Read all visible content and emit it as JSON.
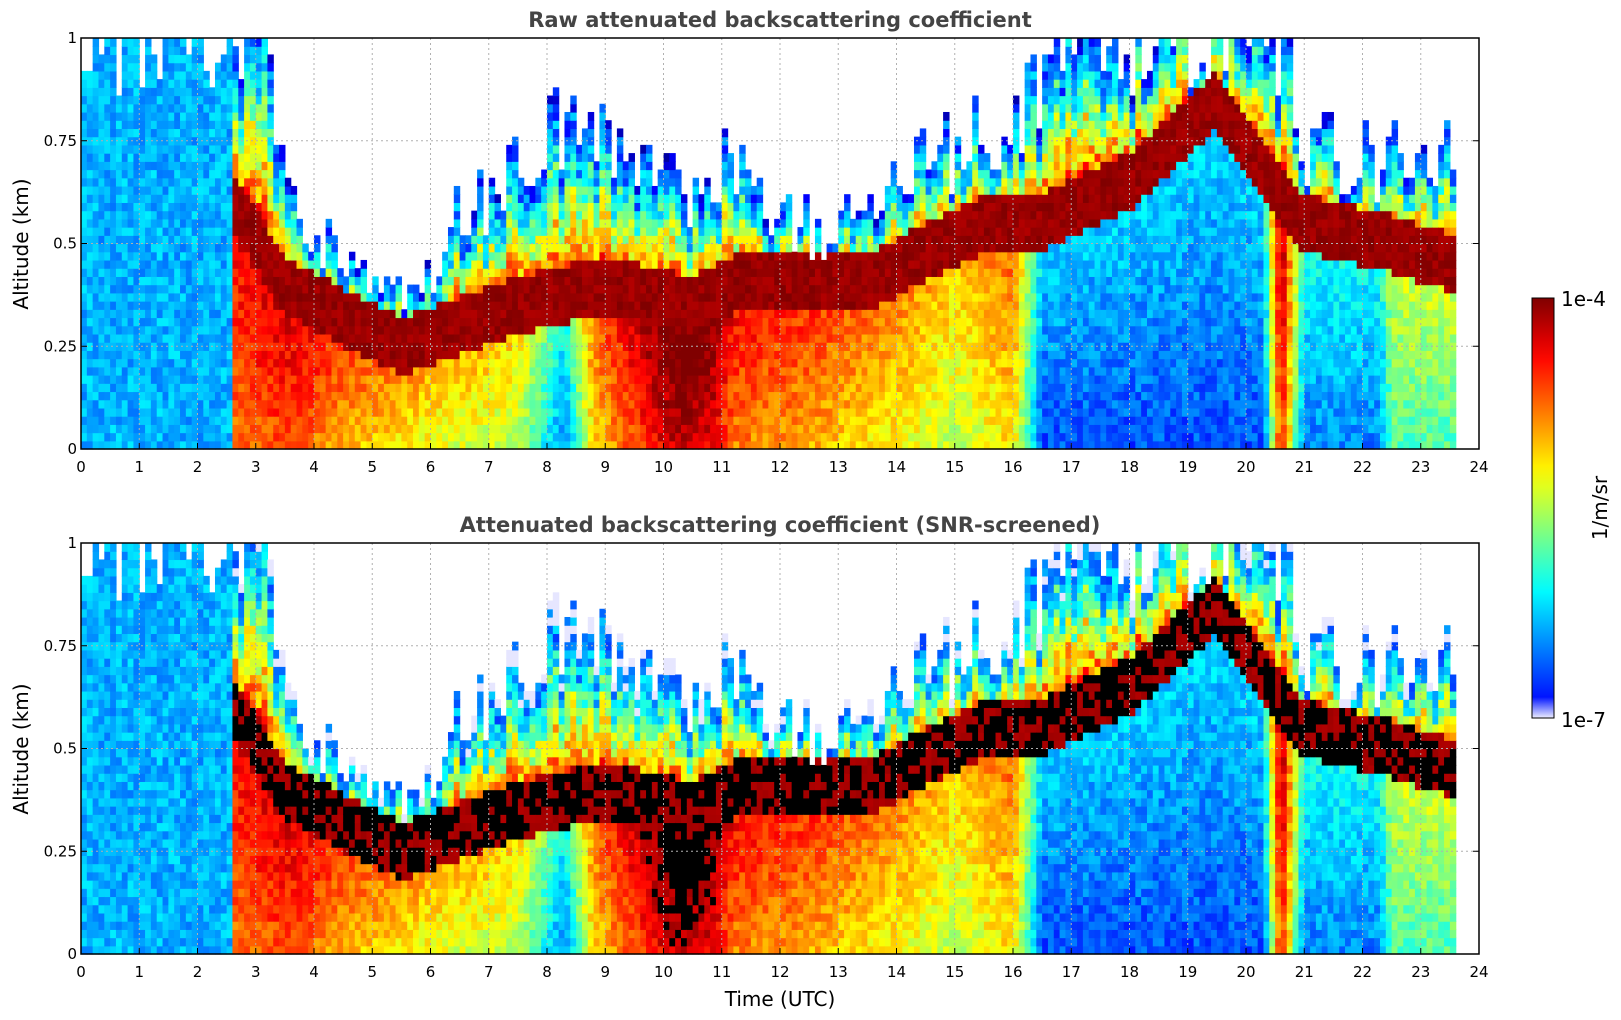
{
  "chart_data": [
    {
      "type": "heatmap",
      "title": "Raw attenuated backscattering coefficient",
      "xlabel": "",
      "ylabel": "Altitude (km)",
      "xlim": [
        0,
        24
      ],
      "ylim": [
        0,
        1
      ],
      "x_ticks": [
        "0",
        "1",
        "2",
        "3",
        "4",
        "5",
        "6",
        "7",
        "8",
        "9",
        "10",
        "11",
        "12",
        "13",
        "14",
        "15",
        "16",
        "17",
        "18",
        "19",
        "20",
        "21",
        "22",
        "23",
        "24"
      ],
      "y_ticks": [
        "0",
        "0.25",
        "0.5",
        "0.75",
        "1"
      ],
      "grid": true,
      "data_end_time": 23.6,
      "max_layer_altitude_km": [
        {
          "t": 0,
          "alt": 1.0
        },
        {
          "t": 2.55,
          "alt": 1.0
        },
        {
          "t": 3.2,
          "alt": 1.0
        },
        {
          "t": 3.5,
          "alt": 0.62
        },
        {
          "t": 4.0,
          "alt": 0.52
        },
        {
          "t": 4.5,
          "alt": 0.48
        },
        {
          "t": 5.0,
          "alt": 0.4
        },
        {
          "t": 5.5,
          "alt": 0.38
        },
        {
          "t": 6.0,
          "alt": 0.4
        },
        {
          "t": 6.3,
          "alt": 0.55
        },
        {
          "t": 7.0,
          "alt": 0.6
        },
        {
          "t": 7.8,
          "alt": 0.75
        },
        {
          "t": 8.5,
          "alt": 0.8
        },
        {
          "t": 9.5,
          "alt": 0.75
        },
        {
          "t": 10.5,
          "alt": 0.58
        },
        {
          "t": 11.0,
          "alt": 0.7
        },
        {
          "t": 12.0,
          "alt": 0.55
        },
        {
          "t": 13.0,
          "alt": 0.52
        },
        {
          "t": 14.0,
          "alt": 0.65
        },
        {
          "t": 15.0,
          "alt": 0.72
        },
        {
          "t": 16.0,
          "alt": 0.8
        },
        {
          "t": 17.0,
          "alt": 1.0
        },
        {
          "t": 20.5,
          "alt": 1.0
        },
        {
          "t": 21.0,
          "alt": 0.75
        },
        {
          "t": 22.0,
          "alt": 0.7
        },
        {
          "t": 23.6,
          "alt": 0.7
        }
      ],
      "aerosol_layer_top_km": [
        {
          "t": 2.6,
          "alt": 0.6
        },
        {
          "t": 3.5,
          "alt": 0.4
        },
        {
          "t": 4.5,
          "alt": 0.32
        },
        {
          "t": 5.5,
          "alt": 0.25
        },
        {
          "t": 6.5,
          "alt": 0.3
        },
        {
          "t": 7.5,
          "alt": 0.35
        },
        {
          "t": 9.0,
          "alt": 0.4
        },
        {
          "t": 10.5,
          "alt": 0.35
        },
        {
          "t": 11.5,
          "alt": 0.42
        },
        {
          "t": 12.5,
          "alt": 0.4
        },
        {
          "t": 13.5,
          "alt": 0.4
        },
        {
          "t": 14.5,
          "alt": 0.48
        },
        {
          "t": 15.5,
          "alt": 0.55
        },
        {
          "t": 16.5,
          "alt": 0.55
        },
        {
          "t": 18.0,
          "alt": 0.65
        },
        {
          "t": 19.5,
          "alt": 0.85
        },
        {
          "t": 21.0,
          "alt": 0.55
        },
        {
          "t": 22.5,
          "alt": 0.5
        },
        {
          "t": 23.6,
          "alt": 0.45
        }
      ],
      "near_surface_log10_level": [
        {
          "t": 0,
          "level": 0.3
        },
        {
          "t": 2.55,
          "level": 0.3
        },
        {
          "t": 2.6,
          "level": 0.75
        },
        {
          "t": 3.5,
          "level": 0.8
        },
        {
          "t": 4.5,
          "level": 0.7
        },
        {
          "t": 6.0,
          "level": 0.6
        },
        {
          "t": 7.5,
          "level": 0.55
        },
        {
          "t": 8.3,
          "level": 0.25
        },
        {
          "t": 8.8,
          "level": 0.65
        },
        {
          "t": 9.5,
          "level": 0.8
        },
        {
          "t": 10.3,
          "level": 0.95
        },
        {
          "t": 10.8,
          "level": 0.9
        },
        {
          "t": 11.2,
          "level": 0.75
        },
        {
          "t": 12.5,
          "level": 0.7
        },
        {
          "t": 14.0,
          "level": 0.62
        },
        {
          "t": 15.0,
          "level": 0.55
        },
        {
          "t": 16.0,
          "level": 0.65
        },
        {
          "t": 16.5,
          "level": 0.2
        },
        {
          "t": 20.3,
          "level": 0.2
        },
        {
          "t": 20.6,
          "level": 0.85
        },
        {
          "t": 21.0,
          "level": 0.25
        },
        {
          "t": 22.3,
          "level": 0.25
        },
        {
          "t": 22.5,
          "level": 0.45
        },
        {
          "t": 23.6,
          "level": 0.45
        }
      ]
    },
    {
      "type": "heatmap",
      "title": "Attenuated backscattering coefficient (SNR-screened)",
      "xlabel": "Time (UTC)",
      "ylabel": "Altitude (km)",
      "xlim": [
        0,
        24
      ],
      "ylim": [
        0,
        1
      ],
      "x_ticks": [
        "0",
        "1",
        "2",
        "3",
        "4",
        "5",
        "6",
        "7",
        "8",
        "9",
        "10",
        "11",
        "12",
        "13",
        "14",
        "15",
        "16",
        "17",
        "18",
        "19",
        "20",
        "21",
        "22",
        "23",
        "24"
      ],
      "y_ticks": [
        "0",
        "0.25",
        "0.5",
        "0.75",
        "1"
      ],
      "grid": true,
      "screened": true,
      "saturated_color": "#000000"
    }
  ],
  "colorbar": {
    "label": "1/m/sr",
    "max_label": "1e-4",
    "min_label": "1e-7",
    "colormap": "jet",
    "range": [
      1e-07,
      0.0001
    ],
    "scale": "log"
  }
}
